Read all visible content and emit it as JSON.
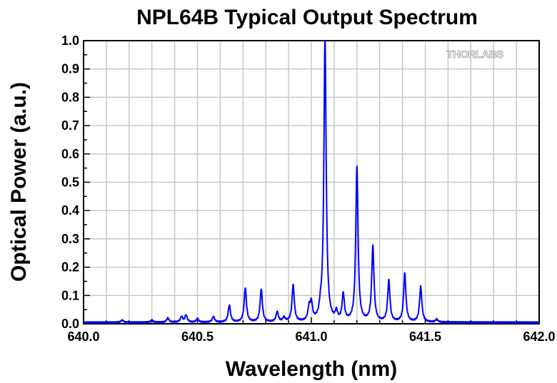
{
  "chart_data": {
    "type": "line",
    "title": "NPL64B Typical Output Spectrum",
    "xlabel": "Wavelength (nm)",
    "ylabel": "Optical Power (a.u.)",
    "xlim": [
      640.0,
      642.0
    ],
    "ylim": [
      0.0,
      1.0
    ],
    "xticks": [
      "640.0",
      "640.5",
      "641.0",
      "641.5",
      "642.0"
    ],
    "yticks": [
      "0.0",
      "0.1",
      "0.2",
      "0.3",
      "0.4",
      "0.5",
      "0.6",
      "0.7",
      "0.8",
      "0.9",
      "1.0"
    ],
    "grid": true,
    "legend": "none",
    "line_color": "#0000ff",
    "grid_color": "#c8c8c8",
    "watermark": "THORLABS",
    "baseline": 0.005,
    "peaks": [
      {
        "x": 640.17,
        "y": 0.008
      },
      {
        "x": 640.3,
        "y": 0.008
      },
      {
        "x": 640.37,
        "y": 0.015
      },
      {
        "x": 640.43,
        "y": 0.02
      },
      {
        "x": 640.45,
        "y": 0.025
      },
      {
        "x": 640.5,
        "y": 0.012
      },
      {
        "x": 640.57,
        "y": 0.02
      },
      {
        "x": 640.64,
        "y": 0.06
      },
      {
        "x": 640.71,
        "y": 0.12
      },
      {
        "x": 640.78,
        "y": 0.115
      },
      {
        "x": 640.85,
        "y": 0.035
      },
      {
        "x": 640.88,
        "y": 0.015
      },
      {
        "x": 640.92,
        "y": 0.13
      },
      {
        "x": 640.99,
        "y": 0.045
      },
      {
        "x": 641.0,
        "y": 0.06
      },
      {
        "x": 641.04,
        "y": 0.03
      },
      {
        "x": 641.06,
        "y": 1.0
      },
      {
        "x": 641.11,
        "y": 0.03
      },
      {
        "x": 641.14,
        "y": 0.095
      },
      {
        "x": 641.2,
        "y": 0.545
      },
      {
        "x": 641.27,
        "y": 0.265
      },
      {
        "x": 641.34,
        "y": 0.145
      },
      {
        "x": 641.41,
        "y": 0.17
      },
      {
        "x": 641.48,
        "y": 0.125
      },
      {
        "x": 641.55,
        "y": 0.01
      }
    ]
  }
}
